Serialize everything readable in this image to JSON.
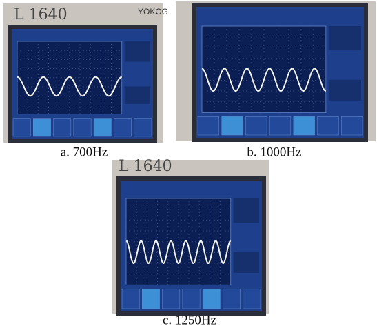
{
  "panels": [
    {
      "caption": "a. 700Hz",
      "brand": "L 1640",
      "maker": "YOKOG"
    },
    {
      "caption": "b. 1000Hz"
    },
    {
      "caption": "c. 1250Hz",
      "brand": "L 1640"
    }
  ]
}
